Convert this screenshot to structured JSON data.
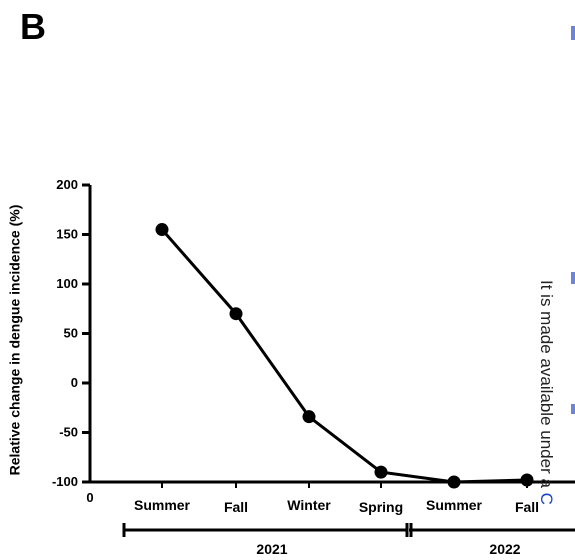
{
  "panel_label": "B",
  "side_text": {
    "plain": "It is made available under a ",
    "link": "C"
  },
  "chart_data": {
    "type": "line",
    "title": "",
    "xlabel": "",
    "ylabel": "Relative change in dengue incidence (%)",
    "ylim": [
      -100,
      200
    ],
    "yticks": [
      -100,
      -50,
      0,
      50,
      100,
      150,
      200
    ],
    "x_origin_label": "0",
    "categories": [
      "Summer",
      "Fall",
      "Winter",
      "Spring",
      "Summer",
      "Fall"
    ],
    "series": [
      {
        "values": [
          155,
          70,
          -34,
          -90,
          -100,
          -98
        ]
      }
    ],
    "year_groups": [
      {
        "label": "2021",
        "span": [
          0,
          3
        ]
      },
      {
        "label": "2022",
        "span": [
          4,
          5
        ]
      }
    ],
    "grid": false,
    "line_color": "#000000"
  }
}
